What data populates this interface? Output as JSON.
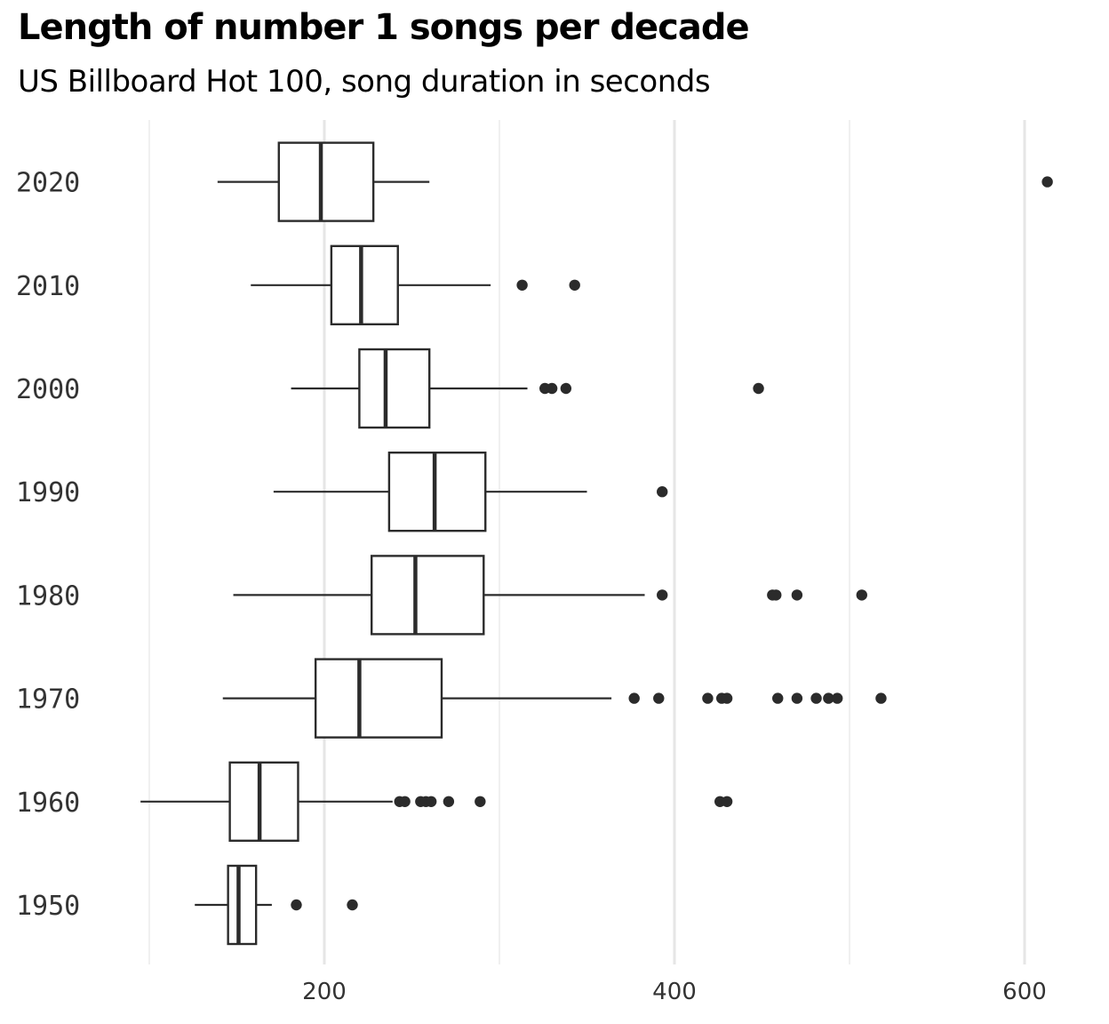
{
  "chart_data": {
    "type": "boxplot",
    "title": "Length of number 1 songs per decade",
    "subtitle": "US Billboard Hot 100, song duration in seconds",
    "xlabel": "",
    "ylabel": "",
    "xlim": [
      100,
      610
    ],
    "x_ticks": [
      200,
      400,
      600
    ],
    "grid": "vertical",
    "legend": "none",
    "colors": {
      "box_stroke": "#2b2b2b",
      "outlier": "#2b2b2b",
      "grid": "#e6e6e6",
      "tick_text": "#333333"
    },
    "categories": [
      "1950",
      "1960",
      "1970",
      "1980",
      "1990",
      "2000",
      "2010",
      "2020"
    ],
    "series": [
      {
        "category": "1950",
        "whisker_low": 126,
        "q1": 145,
        "median": 151,
        "q3": 161,
        "whisker_high": 170,
        "outliers": [
          184,
          216
        ]
      },
      {
        "category": "1960",
        "whisker_low": 95,
        "q1": 146,
        "median": 163,
        "q3": 185,
        "whisker_high": 239,
        "outliers": [
          243,
          246,
          255,
          258,
          261,
          271,
          289,
          426,
          430
        ]
      },
      {
        "category": "1970",
        "whisker_low": 142,
        "q1": 195,
        "median": 220,
        "q3": 267,
        "whisker_high": 364,
        "outliers": [
          377,
          391,
          419,
          427,
          430,
          459,
          470,
          481,
          488,
          493,
          518
        ]
      },
      {
        "category": "1980",
        "whisker_low": 148,
        "q1": 227,
        "median": 252,
        "q3": 291,
        "whisker_high": 383,
        "outliers": [
          393,
          456,
          458,
          470,
          507
        ]
      },
      {
        "category": "1990",
        "whisker_low": 171,
        "q1": 237,
        "median": 263,
        "q3": 292,
        "whisker_high": 350,
        "outliers": [
          393
        ]
      },
      {
        "category": "2000",
        "whisker_low": 181,
        "q1": 220,
        "median": 235,
        "q3": 260,
        "whisker_high": 316,
        "outliers": [
          326,
          330,
          338,
          448
        ]
      },
      {
        "category": "2010",
        "whisker_low": 158,
        "q1": 204,
        "median": 221,
        "q3": 242,
        "whisker_high": 295,
        "outliers": [
          313,
          343
        ]
      },
      {
        "category": "2020",
        "whisker_low": 139,
        "q1": 174,
        "median": 198,
        "q3": 228,
        "whisker_high": 260,
        "outliers": [
          613
        ]
      }
    ]
  }
}
